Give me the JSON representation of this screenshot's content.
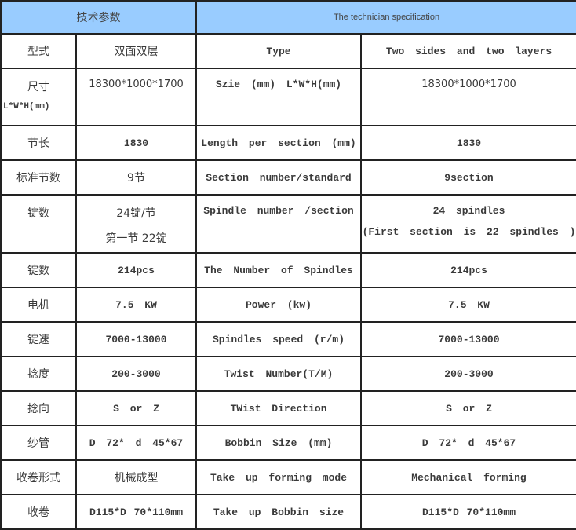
{
  "header": {
    "zh": "技术参数",
    "en": "The technician specification"
  },
  "rows": [
    {
      "zh_label": "型式",
      "zh_value": "双面双层",
      "en_label": "Type",
      "en_value": "Two sides and two layers"
    },
    {
      "zh_label": "尺寸",
      "zh_label_sub": "L*W*H(mm)",
      "zh_value": "18300*1000*1700",
      "en_label": "Szie (mm) L*W*H(mm)",
      "en_value": "18300*1000*1700"
    },
    {
      "zh_label": "节长",
      "zh_value": "1830",
      "en_label": "Length per section (mm)",
      "en_value": "1830"
    },
    {
      "zh_label": "标准节数",
      "zh_value": "9节",
      "en_label": "Section number/standard",
      "en_value": "9section"
    },
    {
      "zh_label": "锭数",
      "zh_value": "24锭/节",
      "zh_value_2": "第一节 22锭",
      "en_label": "Spindle number /section",
      "en_value": "24 spindles",
      "en_value_2": "(First section is 22 spindles )"
    },
    {
      "zh_label": "锭数",
      "zh_value": "214pcs",
      "en_label": "The Number of Spindles",
      "en_value": "214pcs"
    },
    {
      "zh_label": "电机",
      "zh_value": "7.5 KW",
      "en_label": "Power (kw)",
      "en_value": "7.5 KW"
    },
    {
      "zh_label": "锭速",
      "zh_value": "7000-13000",
      "en_label": "Spindles speed (r/m)",
      "en_value": "7000-13000"
    },
    {
      "zh_label": "捻度",
      "zh_value": "200-3000",
      "en_label": "Twist Number(T/M)",
      "en_value": "200-3000"
    },
    {
      "zh_label": "捻向",
      "zh_value": "S or Z",
      "en_label": "TWist Direction",
      "en_value": "S or Z"
    },
    {
      "zh_label": "纱管",
      "zh_value": "D 72* d 45*67",
      "en_label": "Bobbin Size (mm)",
      "en_value": "D 72* d 45*67"
    },
    {
      "zh_label": "收卷形式",
      "zh_value": "机械成型",
      "en_label": "Take up forming mode",
      "en_value": "Mechanical forming"
    },
    {
      "zh_label": "收卷",
      "zh_value": "D115*D 70*110mm",
      "en_label": "Take up Bobbin size",
      "en_value": "D115*D 70*110mm"
    }
  ],
  "colors": {
    "header_bg": "#99ccff",
    "border": "#222222",
    "text": "#3a3a3a"
  }
}
